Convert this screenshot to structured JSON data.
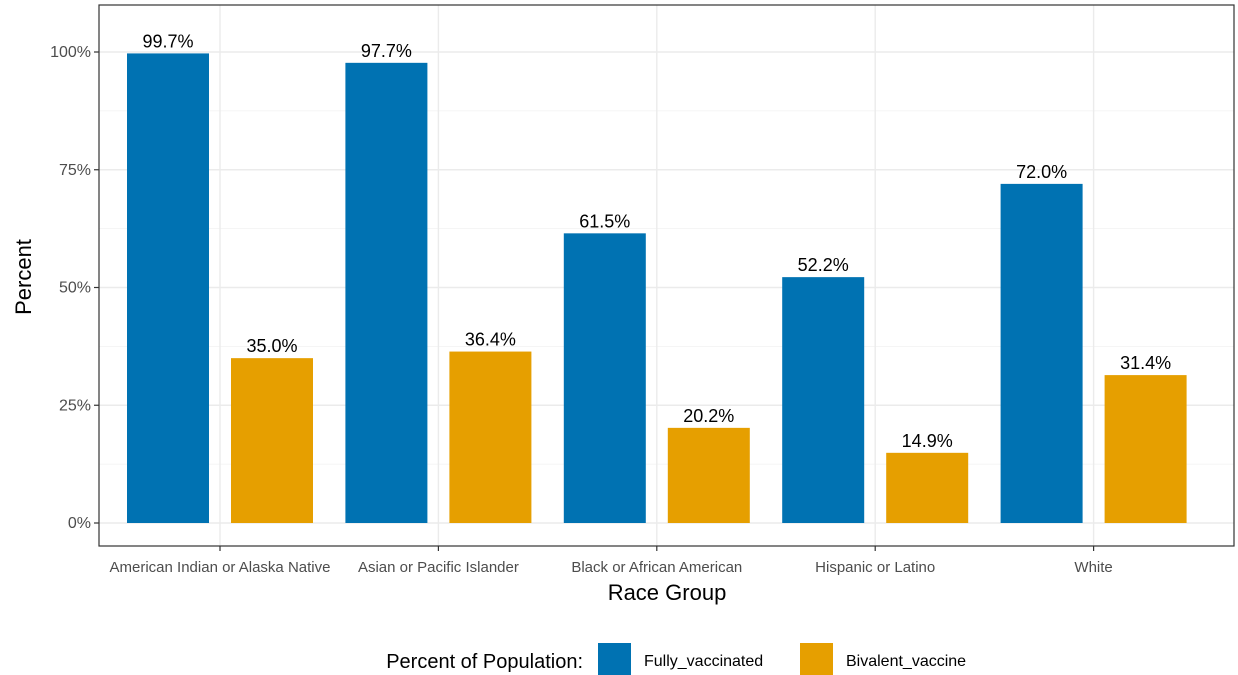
{
  "chart_data": {
    "type": "bar",
    "xlabel": "Race Group",
    "ylabel": "Percent",
    "ylim": [
      0,
      1.05
    ],
    "yticks": [
      0,
      0.25,
      0.5,
      0.75,
      1.0
    ],
    "ytick_labels": [
      "0%",
      "25%",
      "50%",
      "75%",
      "100%"
    ],
    "categories": [
      "American Indian or Alaska Native",
      "Asian or Pacific Islander",
      "Black or African American",
      "Hispanic or Latino",
      "White"
    ],
    "series": [
      {
        "name": "Fully_vaccinated",
        "color": "#0072b2",
        "values": [
          0.997,
          0.977,
          0.615,
          0.522,
          0.72
        ],
        "labels": [
          "99.7%",
          "97.7%",
          "61.5%",
          "52.2%",
          "72.0%"
        ]
      },
      {
        "name": "Bivalent_vaccine",
        "color": "#e69f00",
        "values": [
          0.35,
          0.364,
          0.202,
          0.149,
          0.314
        ],
        "labels": [
          "35.0%",
          "36.4%",
          "20.2%",
          "14.9%",
          "31.4%"
        ]
      }
    ],
    "grid": true,
    "legend": {
      "title": "Percent of Population:",
      "position": "bottom"
    }
  }
}
